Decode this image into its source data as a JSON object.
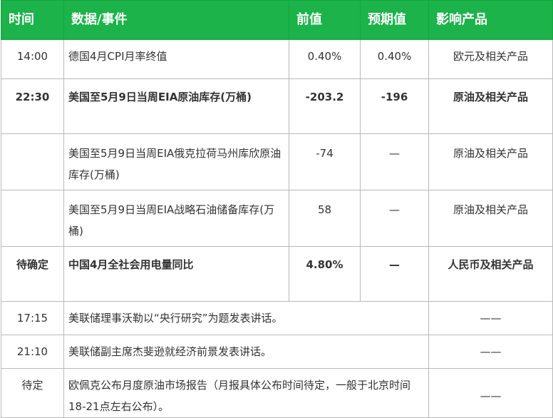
{
  "header": {
    "time": "时间",
    "event": "数据/事件",
    "previous": "前值",
    "forecast": "预期值",
    "impact": "影响产品"
  },
  "rows": [
    {
      "time": "14:00",
      "event": "德国4月CPI月率终值",
      "previous": "0.40%",
      "forecast": "0.40%",
      "impact": "欧元及相关产品",
      "bold": false
    },
    {
      "time": "22:30",
      "event": "美国至5月9日当周EIA原油库存(万桶)",
      "previous": "-203.2",
      "forecast": "-196",
      "impact": "原油及相关产品",
      "bold": true
    },
    {
      "time": "",
      "event": "美国至5月9日当周EIA俄克拉荷马州库欣原油库存(万桶)",
      "previous": "-74",
      "forecast": "—",
      "impact": "原油及相关产品",
      "bold": false
    },
    {
      "time": "",
      "event": "美国至5月9日当周EIA战略石油储备库存(万桶)",
      "previous": "58",
      "forecast": "—",
      "impact": "原油及相关产品",
      "bold": false
    },
    {
      "time": "待确定",
      "event": "中国4月全社会用电量同比",
      "previous": "4.80%",
      "forecast": "—",
      "impact": "人民币及相关产品",
      "bold": true
    },
    {
      "time": "17:15",
      "event": "美联储理事沃勒以“央行研究”为题发表讲话。",
      "previous": "",
      "forecast": "",
      "impact": "——",
      "bold": false
    },
    {
      "time": "21:10",
      "event": "美联储副主席杰斐逊就经济前景发表讲话。",
      "previous": "",
      "forecast": "",
      "impact": "——",
      "bold": false
    },
    {
      "time": "待定",
      "event": "欧佩克公布月度原油市场报告（月报具体公布时间待定，一般于北京时间18-21点左右公布）。",
      "previous": "",
      "forecast": "",
      "impact": "——",
      "bold": false
    }
  ]
}
